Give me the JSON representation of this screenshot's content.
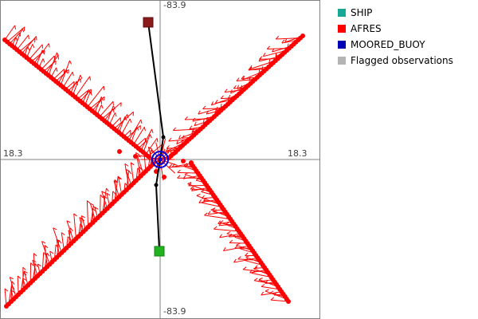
{
  "plot": {
    "label_top": "-83.9",
    "label_bottom": "-83.9",
    "label_left": "18.3",
    "label_right": "18.3"
  },
  "legend": {
    "items": [
      {
        "label": "SHIP",
        "color": "#1aa896"
      },
      {
        "label": "AFRES",
        "color": "#ff0000"
      },
      {
        "label": "MOORED_BUOY",
        "color": "#0000b4"
      },
      {
        "label": "Flagged observations",
        "color": "#b4b4b4"
      }
    ]
  },
  "colors": {
    "axis": "#808080",
    "border": "#808080",
    "track": "#ff0000",
    "path": "#000000",
    "start_marker": "#8b1a1a",
    "end_marker": "#22b322",
    "buoy": "#0000dc"
  }
}
